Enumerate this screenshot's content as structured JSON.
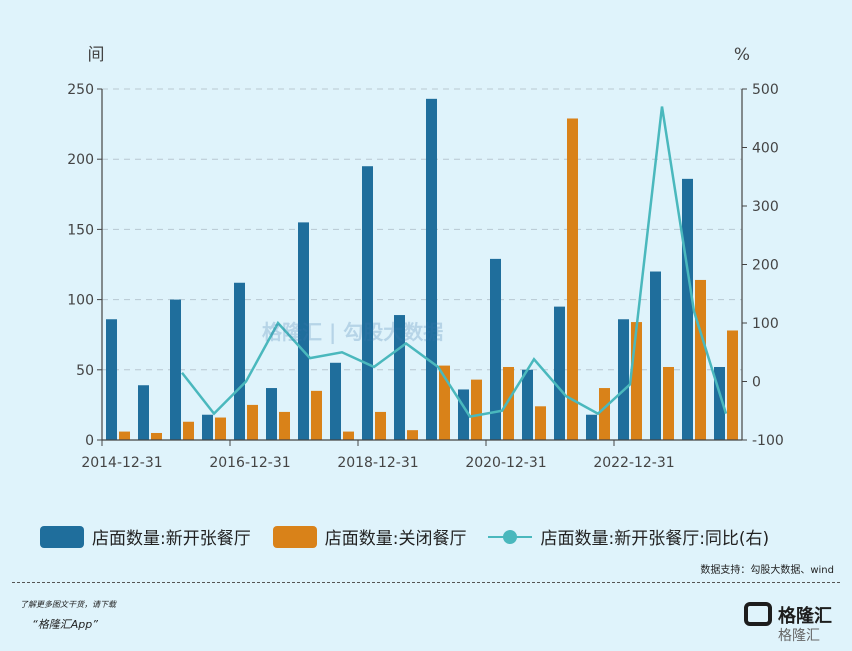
{
  "chart_data": {
    "type": "bar",
    "left_unit": "间",
    "right_unit": "%",
    "x_tick_labels": [
      "2014-12-31",
      "2016-12-31",
      "2018-12-31",
      "2020-12-31",
      "2022-12-31"
    ],
    "ylim_left": [
      0,
      250
    ],
    "ylim_right": [
      -100,
      500
    ],
    "yticks_left": [
      "0",
      "50",
      "100",
      "150",
      "200",
      "250"
    ],
    "yticks_right": [
      "-100",
      "0",
      "100",
      "200",
      "300",
      "400",
      "500"
    ],
    "grid": true,
    "colors": {
      "new": "#1f6e9c",
      "closed": "#d98219",
      "yoy": "#4ab8bd"
    },
    "series": [
      {
        "name": "店面数量:新开张餐厅",
        "type": "bar",
        "axis": "left",
        "values": [
          86,
          39,
          100,
          18,
          112,
          37,
          155,
          55,
          195,
          89,
          243,
          36,
          129,
          50,
          95,
          18,
          86,
          120,
          186,
          52
        ]
      },
      {
        "name": "店面数量:关闭餐厅",
        "type": "bar",
        "axis": "left",
        "values": [
          6,
          5,
          13,
          16,
          25,
          20,
          35,
          6,
          20,
          7,
          53,
          43,
          52,
          24,
          229,
          37,
          84,
          52,
          114,
          78
        ]
      },
      {
        "name": "店面数量:新开张餐厅:同比(右)",
        "type": "line",
        "axis": "right",
        "values": [
          null,
          null,
          15,
          -55,
          0,
          100,
          40,
          50,
          25,
          65,
          25,
          -60,
          -50,
          38,
          -25,
          -55,
          -5,
          470,
          120,
          -55
        ]
      }
    ]
  },
  "legend": {
    "new_label": "店面数量:新开张餐厅",
    "closed_label": "店面数量:关闭餐厅",
    "yoy_label": "店面数量:新开张餐厅:同比(右)"
  },
  "footer": {
    "source": "数据支持：勾股大数据、wind",
    "promo_line1": "了解更多图文干货，请下载",
    "promo_line2": "“格隆汇App”",
    "brand_name": "格隆汇",
    "brand_name2": "格隆汇"
  },
  "watermark": "格隆汇 | 勾股大数据"
}
